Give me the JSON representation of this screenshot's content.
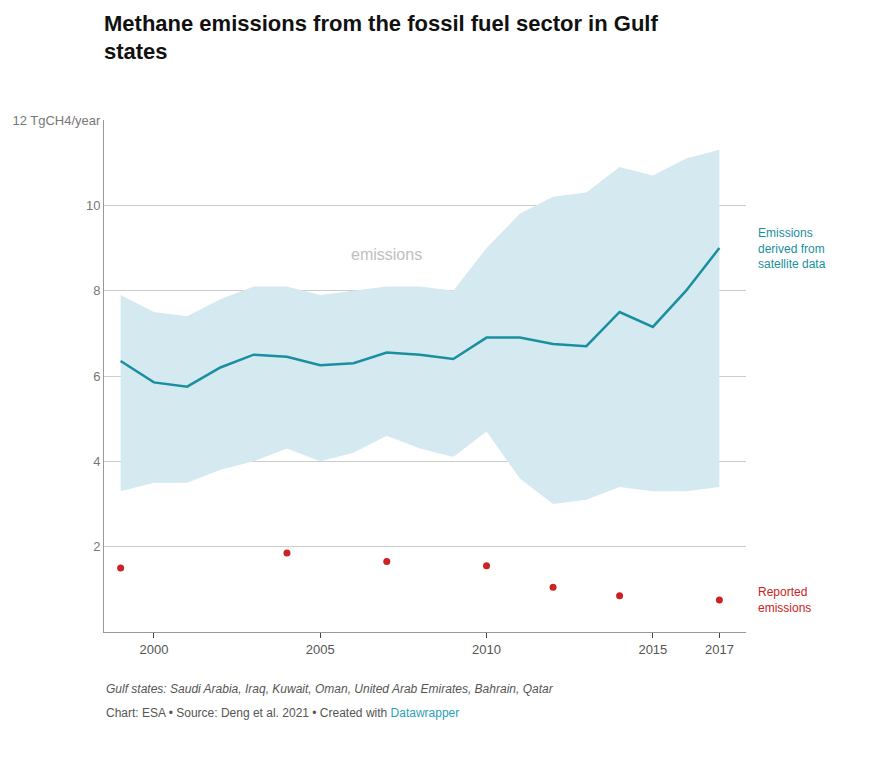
{
  "chart_data": {
    "type": "line",
    "title": "Methane emissions from the fossil fuel sector in Gulf\nstates",
    "series": [
      {
        "name": "Emissions\nderived from\nsatellite data",
        "type": "line",
        "color": "#1a8fa0",
        "x": [
          1999,
          2000,
          2001,
          2002,
          2003,
          2004,
          2005,
          2006,
          2007,
          2008,
          2009,
          2010,
          2011,
          2012,
          2013,
          2014,
          2015,
          2016,
          2017
        ],
        "values": [
          6.35,
          5.85,
          5.75,
          6.2,
          6.5,
          6.45,
          6.25,
          6.3,
          6.55,
          6.5,
          6.4,
          6.9,
          6.9,
          6.75,
          6.7,
          7.5,
          7.15,
          8.0,
          9.0
        ]
      },
      {
        "name": "Reported\nemissions",
        "type": "scatter",
        "marker": "circle",
        "color": "#cc2222",
        "x": [
          1999,
          2004,
          2007,
          2010,
          2012,
          2014,
          2017
        ],
        "values": [
          1.5,
          1.85,
          1.65,
          1.55,
          1.05,
          0.85,
          0.75
        ]
      }
    ],
    "band": {
      "color": "#d4e9f0",
      "x": [
        1999,
        2000,
        2001,
        2002,
        2003,
        2004,
        2005,
        2006,
        2007,
        2008,
        2009,
        2010,
        2011,
        2012,
        2013,
        2014,
        2015,
        2016,
        2017
      ],
      "lower": [
        3.3,
        3.5,
        3.5,
        3.8,
        4.0,
        4.3,
        4.0,
        4.2,
        4.6,
        4.3,
        4.1,
        4.7,
        3.6,
        3.0,
        3.1,
        3.4,
        3.3,
        3.3,
        3.4
      ],
      "upper": [
        7.9,
        7.5,
        7.4,
        7.8,
        8.1,
        8.1,
        7.9,
        8.0,
        8.1,
        8.1,
        8.0,
        9.0,
        9.8,
        10.2,
        10.3,
        10.9,
        10.7,
        11.1,
        11.3
      ]
    },
    "annotations": [
      {
        "text": "emissions",
        "x": 2007,
        "y": 8.85,
        "color": "#c0c0c0"
      }
    ],
    "notes": [
      "Gulf states: Saudi Arabia, Iraq, Kuwait, Oman, United Arab Emirates, Bahrain, Qatar"
    ],
    "source": "Chart: ESA • Source: Deng et al. 2021 • Created with ",
    "source_highlight": {
      "text": "Datawrapper",
      "color": "#2aa0b8"
    },
    "xlim": [
      1998.5,
      2017.8
    ],
    "xticks": [
      2000,
      2005,
      2010,
      2015,
      2017
    ],
    "ylim": [
      0,
      12
    ],
    "yticks": [
      2,
      4,
      6,
      8,
      10,
      {
        "value": 12,
        "label": "12 TgCH4/year"
      }
    ],
    "grid": "y"
  }
}
